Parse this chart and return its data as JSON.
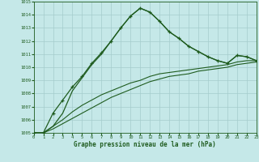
{
  "title": "Graphe pression niveau de la mer (hPa)",
  "bg_color": "#c5e8e8",
  "grid_color": "#a5cccc",
  "line_color": "#1f5c1f",
  "xlim": [
    0,
    23
  ],
  "ylim": [
    1005,
    1015
  ],
  "xticks": [
    0,
    1,
    2,
    3,
    4,
    5,
    6,
    7,
    8,
    9,
    10,
    11,
    12,
    13,
    14,
    15,
    16,
    17,
    18,
    19,
    20,
    21,
    22,
    23
  ],
  "yticks": [
    1005,
    1006,
    1007,
    1008,
    1009,
    1010,
    1011,
    1012,
    1013,
    1014,
    1015
  ],
  "marker_x": [
    0,
    1,
    2,
    3,
    4,
    5,
    6,
    7,
    8,
    9,
    10,
    11,
    12,
    13,
    14,
    15,
    16,
    17,
    18,
    19,
    20,
    21,
    22,
    23
  ],
  "marker_y": [
    1005.0,
    1005.0,
    1006.5,
    1007.5,
    1008.5,
    1009.3,
    1010.3,
    1011.1,
    1012.0,
    1013.0,
    1013.9,
    1014.5,
    1014.2,
    1013.5,
    1012.7,
    1012.2,
    1011.6,
    1011.2,
    1010.8,
    1010.5,
    1010.3,
    1010.9,
    1010.8,
    1010.5
  ],
  "plain_x": [
    0,
    1,
    2,
    3,
    4,
    5,
    6,
    7,
    8,
    9,
    10,
    11,
    12,
    13,
    14,
    15,
    16,
    17,
    18,
    19,
    20,
    21,
    22,
    23
  ],
  "plain_y": [
    1005.0,
    1005.0,
    1005.5,
    1006.5,
    1008.2,
    1009.2,
    1010.2,
    1011.0,
    1012.0,
    1013.0,
    1013.9,
    1014.5,
    1014.2,
    1013.5,
    1012.7,
    1012.2,
    1011.6,
    1011.2,
    1010.8,
    1010.5,
    1010.3,
    1010.9,
    1010.8,
    1010.5
  ],
  "low1_x": [
    0,
    1,
    2,
    3,
    4,
    5,
    6,
    7,
    8,
    9,
    10,
    11,
    12,
    13,
    14,
    15,
    16,
    17,
    18,
    19,
    20,
    21,
    22,
    23
  ],
  "low1_y": [
    1005.0,
    1005.0,
    1005.3,
    1005.7,
    1006.1,
    1006.5,
    1006.9,
    1007.3,
    1007.7,
    1008.0,
    1008.3,
    1008.6,
    1008.9,
    1009.1,
    1009.3,
    1009.4,
    1009.5,
    1009.7,
    1009.8,
    1009.9,
    1010.0,
    1010.2,
    1010.3,
    1010.4
  ],
  "low2_x": [
    0,
    1,
    2,
    3,
    4,
    5,
    6,
    7,
    8,
    9,
    10,
    11,
    12,
    13,
    14,
    15,
    16,
    17,
    18,
    19,
    20,
    21,
    22,
    23
  ],
  "low2_y": [
    1005.0,
    1005.0,
    1005.5,
    1006.0,
    1006.6,
    1007.1,
    1007.5,
    1007.9,
    1008.2,
    1008.5,
    1008.8,
    1009.0,
    1009.3,
    1009.5,
    1009.6,
    1009.7,
    1009.8,
    1009.9,
    1010.0,
    1010.1,
    1010.2,
    1010.4,
    1010.5,
    1010.5
  ]
}
